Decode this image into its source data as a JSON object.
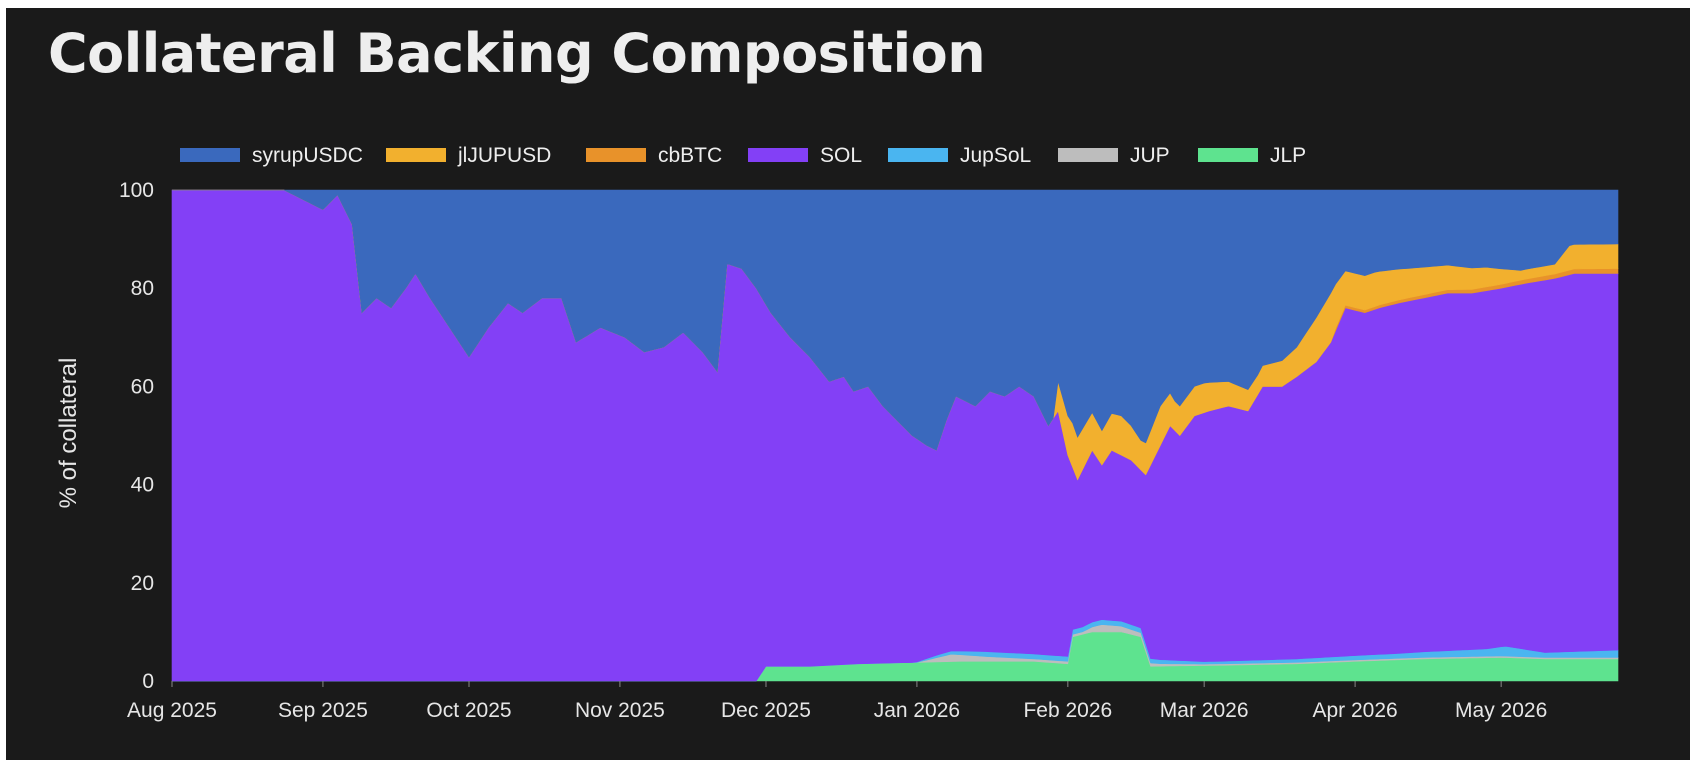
{
  "chart_data": {
    "type": "area",
    "stacked": true,
    "title": "Collateral Backing Composition",
    "ylabel": "% of collateral",
    "xlabel": "",
    "ylim": [
      0,
      100
    ],
    "yticks": [
      0,
      20,
      40,
      60,
      80,
      100
    ],
    "xtick_labels": [
      "Aug 2025",
      "Sep 2025",
      "Oct 2025",
      "Nov 2025",
      "Dec 2025",
      "Jan 2026",
      "Feb 2026",
      "Mar 2026",
      "Apr 2026",
      "May 2026"
    ],
    "xtick_dates": [
      "2025-08-01",
      "2025-09-01",
      "2025-10-01",
      "2025-11-01",
      "2025-12-01",
      "2026-01-01",
      "2026-02-01",
      "2026-03-01",
      "2026-04-01",
      "2026-05-01"
    ],
    "xlim": [
      "2025-08-01",
      "2026-05-25"
    ],
    "legend_position": "top",
    "grid": false,
    "stack_order": [
      "JLP",
      "JUP",
      "JupSoL",
      "SOL",
      "cbBTC",
      "jlJUPUSD",
      "syrupUSDC"
    ],
    "series": [
      {
        "name": "syrupUSDC",
        "color": "#3a69bd",
        "values": "remainder to 100"
      },
      {
        "name": "jlJUPUSD",
        "color": "#f2b02e",
        "points": [
          [
            "2026-01-29",
            0
          ],
          [
            "2026-01-30",
            6
          ],
          [
            "2026-02-02",
            9
          ],
          [
            "2026-02-05",
            8
          ],
          [
            "2026-02-08",
            7
          ],
          [
            "2026-02-12",
            8
          ],
          [
            "2026-02-16",
            6
          ],
          [
            "2026-02-20",
            8
          ],
          [
            "2026-02-23",
            6
          ],
          [
            "2026-03-01",
            6
          ],
          [
            "2026-03-06",
            5
          ],
          [
            "2026-03-12",
            4
          ],
          [
            "2026-03-16",
            5
          ],
          [
            "2026-03-20",
            6
          ],
          [
            "2026-03-24",
            9
          ],
          [
            "2026-03-27",
            10
          ],
          [
            "2026-03-30",
            7
          ],
          [
            "2026-04-05",
            7
          ],
          [
            "2026-04-12",
            6
          ],
          [
            "2026-04-20",
            5
          ],
          [
            "2026-04-28",
            4
          ],
          [
            "2026-05-05",
            2
          ],
          [
            "2026-05-12",
            2
          ],
          [
            "2026-05-15",
            5
          ],
          [
            "2026-05-25",
            5
          ]
        ]
      },
      {
        "name": "cbBTC",
        "color": "#e8922a",
        "points": [
          [
            "2026-03-27",
            0
          ],
          [
            "2026-03-28",
            0.5
          ],
          [
            "2026-05-25",
            1
          ]
        ]
      },
      {
        "name": "SOL",
        "color": "#8340f6",
        "points": [
          [
            "2025-08-01",
            100
          ],
          [
            "2025-08-24",
            100
          ],
          [
            "2025-08-28",
            98
          ],
          [
            "2025-09-01",
            96
          ],
          [
            "2025-09-04",
            99
          ],
          [
            "2025-09-07",
            93
          ],
          [
            "2025-09-09",
            75
          ],
          [
            "2025-09-12",
            78
          ],
          [
            "2025-09-15",
            76
          ],
          [
            "2025-09-18",
            80
          ],
          [
            "2025-09-20",
            83
          ],
          [
            "2025-09-23",
            78
          ],
          [
            "2025-09-27",
            72
          ],
          [
            "2025-10-01",
            66
          ],
          [
            "2025-10-05",
            72
          ],
          [
            "2025-10-09",
            77
          ],
          [
            "2025-10-12",
            75
          ],
          [
            "2025-10-16",
            78
          ],
          [
            "2025-10-20",
            78
          ],
          [
            "2025-10-23",
            69
          ],
          [
            "2025-10-28",
            72
          ],
          [
            "2025-11-02",
            70
          ],
          [
            "2025-11-06",
            67
          ],
          [
            "2025-11-10",
            68
          ],
          [
            "2025-11-14",
            71
          ],
          [
            "2025-11-18",
            67
          ],
          [
            "2025-11-21",
            63
          ],
          [
            "2025-11-23",
            85
          ],
          [
            "2025-11-26",
            84
          ],
          [
            "2025-11-29",
            80
          ],
          [
            "2025-12-02",
            75
          ],
          [
            "2025-12-06",
            70
          ],
          [
            "2025-12-10",
            66
          ],
          [
            "2025-12-14",
            61
          ],
          [
            "2025-12-17",
            62
          ],
          [
            "2025-12-19",
            59
          ],
          [
            "2025-12-22",
            60
          ],
          [
            "2025-12-25",
            56
          ],
          [
            "2025-12-28",
            53
          ],
          [
            "2025-12-31",
            50
          ],
          [
            "2026-01-03",
            48
          ],
          [
            "2026-01-05",
            47
          ],
          [
            "2026-01-07",
            53
          ],
          [
            "2026-01-09",
            58
          ],
          [
            "2026-01-13",
            56
          ],
          [
            "2026-01-16",
            59
          ],
          [
            "2026-01-19",
            58
          ],
          [
            "2026-01-22",
            60
          ],
          [
            "2026-01-25",
            58
          ],
          [
            "2026-01-28",
            52
          ],
          [
            "2026-01-30",
            55
          ],
          [
            "2026-02-01",
            46
          ],
          [
            "2026-02-03",
            41
          ],
          [
            "2026-02-06",
            47
          ],
          [
            "2026-02-08",
            44
          ],
          [
            "2026-02-10",
            47
          ],
          [
            "2026-02-14",
            45
          ],
          [
            "2026-02-17",
            42
          ],
          [
            "2026-02-20",
            48
          ],
          [
            "2026-02-22",
            52
          ],
          [
            "2026-02-24",
            50
          ],
          [
            "2026-02-27",
            54
          ],
          [
            "2026-03-02",
            55
          ],
          [
            "2026-03-06",
            56
          ],
          [
            "2026-03-10",
            55
          ],
          [
            "2026-03-13",
            60
          ],
          [
            "2026-03-17",
            60
          ],
          [
            "2026-03-20",
            62
          ],
          [
            "2026-03-24",
            65
          ],
          [
            "2026-03-27",
            69
          ],
          [
            "2026-03-30",
            76
          ],
          [
            "2026-04-03",
            75
          ],
          [
            "2026-04-06",
            76
          ],
          [
            "2026-04-10",
            77
          ],
          [
            "2026-04-15",
            78
          ],
          [
            "2026-04-20",
            79
          ],
          [
            "2026-04-25",
            79
          ],
          [
            "2026-05-01",
            80
          ],
          [
            "2026-05-06",
            81
          ],
          [
            "2026-05-12",
            82
          ],
          [
            "2026-05-16",
            83
          ],
          [
            "2026-05-25",
            83
          ]
        ]
      },
      {
        "name": "JupSoL",
        "color": "#4ab5f0",
        "points": [
          [
            "2025-12-31",
            0
          ],
          [
            "2026-01-05",
            0.5
          ],
          [
            "2026-01-15",
            1
          ],
          [
            "2026-01-30",
            1
          ],
          [
            "2026-02-15",
            1
          ],
          [
            "2026-03-01",
            0.5
          ],
          [
            "2026-03-20",
            0.7
          ],
          [
            "2026-04-10",
            1
          ],
          [
            "2026-04-28",
            1.5
          ],
          [
            "2026-05-02",
            2
          ],
          [
            "2026-05-06",
            1.5
          ],
          [
            "2026-05-10",
            1
          ],
          [
            "2026-05-25",
            1.5
          ]
        ]
      },
      {
        "name": "JUP",
        "color": "#bdbdbd",
        "points": [
          [
            "2026-01-01",
            0
          ],
          [
            "2026-01-08",
            1.5
          ],
          [
            "2026-01-15",
            1
          ],
          [
            "2026-01-25",
            0.5
          ],
          [
            "2026-02-04",
            0.5
          ],
          [
            "2026-02-08",
            1.5
          ],
          [
            "2026-02-14",
            1
          ],
          [
            "2026-02-20",
            0.5
          ],
          [
            "2026-03-01",
            0.3
          ],
          [
            "2026-05-25",
            0.3
          ]
        ]
      },
      {
        "name": "JLP",
        "color": "#5ee38f",
        "points": [
          [
            "2025-11-29",
            0
          ],
          [
            "2025-12-01",
            3
          ],
          [
            "2025-12-10",
            3
          ],
          [
            "2025-12-20",
            3.5
          ],
          [
            "2026-01-10",
            4
          ],
          [
            "2026-01-25",
            4
          ],
          [
            "2026-02-01",
            3.5
          ],
          [
            "2026-02-02",
            9
          ],
          [
            "2026-02-06",
            10
          ],
          [
            "2026-02-12",
            10
          ],
          [
            "2026-02-16",
            9
          ],
          [
            "2026-02-18",
            3
          ],
          [
            "2026-03-05",
            3.2
          ],
          [
            "2026-03-20",
            3.5
          ],
          [
            "2026-04-01",
            4
          ],
          [
            "2026-04-15",
            4.5
          ],
          [
            "2026-05-01",
            4.8
          ],
          [
            "2026-05-10",
            4.5
          ],
          [
            "2026-05-25",
            4.5
          ]
        ]
      }
    ]
  }
}
